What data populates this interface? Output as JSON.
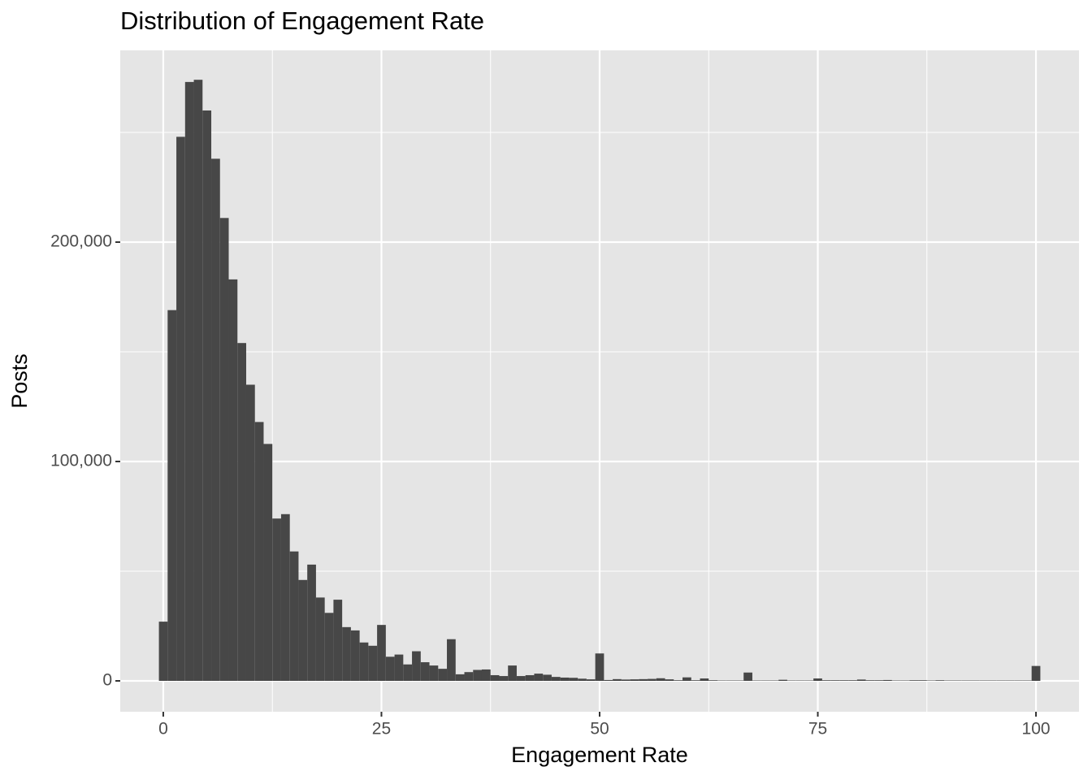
{
  "chart_data": {
    "type": "histogram",
    "title": "Distribution of Engagement Rate",
    "xlabel": "Engagement Rate",
    "ylabel": "Posts",
    "bins": [
      -0.5,
      0.5,
      1.5,
      2.5,
      3.5,
      4.5,
      5.5,
      6.5,
      7.5,
      8.5,
      9.5,
      10.5,
      11.5,
      12.5,
      13.5,
      14.5,
      15.5,
      16.5,
      17.5,
      18.5,
      19.5,
      20.5,
      21.5,
      22.5,
      23.5,
      24.5,
      25.5,
      26.5,
      27.5,
      28.5,
      29.5,
      30.5,
      31.5,
      32.5,
      33.5,
      34.5,
      35.5,
      36.5,
      37.5,
      38.5,
      39.5,
      40.5,
      41.5,
      42.5,
      43.5,
      44.5,
      45.5,
      46.5,
      47.5,
      48.5,
      49.5,
      50.5,
      51.5,
      52.5,
      53.5,
      54.5,
      55.5,
      56.5,
      57.5,
      58.5,
      59.5,
      60.5,
      61.5,
      62.5,
      63.5,
      64.5,
      65.5,
      66.5,
      67.5,
      68.5,
      69.5,
      70.5,
      71.5,
      72.5,
      73.5,
      74.5,
      75.5,
      76.5,
      77.5,
      78.5,
      79.5,
      80.5,
      81.5,
      82.5,
      83.5,
      84.5,
      85.5,
      86.5,
      87.5,
      88.5,
      89.5,
      90.5,
      91.5,
      92.5,
      93.5,
      94.5,
      95.5,
      96.5,
      97.5,
      98.5,
      99.5,
      100.5
    ],
    "counts": [
      27000,
      169000,
      248000,
      273000,
      274000,
      260000,
      238000,
      211000,
      183000,
      154000,
      135000,
      118000,
      108000,
      74000,
      76000,
      59000,
      46000,
      53000,
      38000,
      31000,
      37000,
      24500,
      23000,
      17500,
      16000,
      25500,
      11000,
      12000,
      7500,
      13500,
      8500,
      7000,
      5500,
      19000,
      3000,
      4000,
      5000,
      5200,
      2600,
      2200,
      7000,
      2200,
      2600,
      3300,
      2800,
      1800,
      1500,
      1400,
      1000,
      700,
      12500,
      400,
      800,
      600,
      700,
      800,
      900,
      1200,
      700,
      300,
      1600,
      300,
      1100,
      300,
      200,
      200,
      200,
      3800,
      200,
      200,
      200,
      500,
      200,
      200,
      200,
      1100,
      300,
      300,
      300,
      300,
      600,
      300,
      300,
      400,
      200,
      200,
      300,
      300,
      200,
      300,
      200,
      200,
      200,
      200,
      200,
      200,
      200,
      200,
      200,
      200,
      6800
    ],
    "color": "#474747",
    "xlim": [
      -4.93,
      104.93
    ],
    "xticks": [
      0,
      25,
      50,
      75,
      100
    ],
    "ylim": [
      -14074,
      287400
    ],
    "yticks": [
      {
        "value": 0,
        "label": "0"
      },
      {
        "value": 100000,
        "label": "100,000"
      },
      {
        "value": 200000,
        "label": "200,000"
      }
    ],
    "grid": true
  }
}
